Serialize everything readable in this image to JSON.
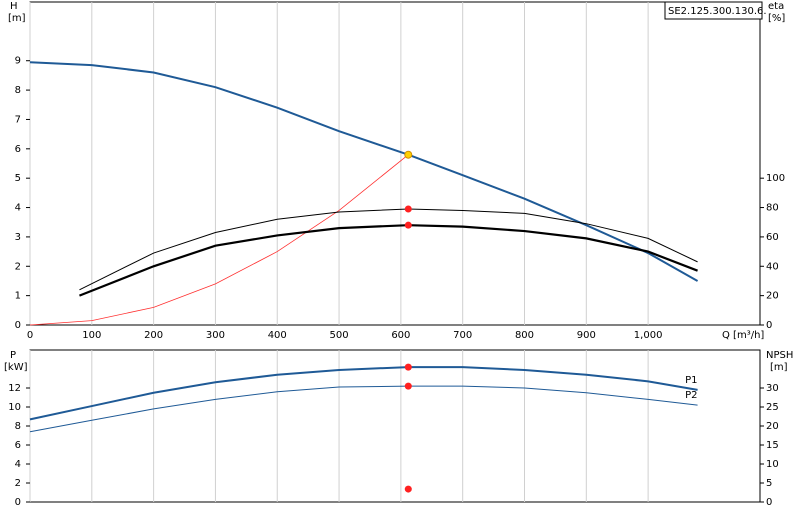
{
  "chart_data": [
    {
      "type": "line",
      "model": "SE2.125.300.130.6.",
      "ylabel": "H",
      "yunit": "[m]",
      "y2label": "eta",
      "y2unit": "[%]",
      "xlabel": "Q [m³/h]",
      "xlim": [
        0,
        1181
      ],
      "xticks": [
        0,
        100,
        200,
        300,
        400,
        500,
        600,
        700,
        800,
        900,
        {
          "value": 1000,
          "label": "1,000"
        }
      ],
      "ylim": [
        0,
        11
      ],
      "yticks": [
        0,
        1,
        2,
        3,
        4,
        5,
        6,
        7,
        8,
        9
      ],
      "y2lim": [
        0,
        220
      ],
      "y2ticks": [
        0,
        20,
        40,
        60,
        80,
        100
      ],
      "grid": true,
      "series": [
        {
          "color": "#1f5a96",
          "width": 2,
          "axis": "y",
          "x": [
            0,
            100,
            200,
            300,
            400,
            500,
            612,
            700,
            800,
            900,
            1000,
            1080
          ],
          "values": [
            8.95,
            8.85,
            8.6,
            8.1,
            7.4,
            6.6,
            5.8,
            5.1,
            4.3,
            3.4,
            2.45,
            1.5
          ]
        },
        {
          "color": "#ff3030",
          "width": 0.8,
          "axis": "y",
          "x": [
            0,
            100,
            200,
            300,
            400,
            500,
            612
          ],
          "values": [
            0,
            0.15,
            0.6,
            1.4,
            2.5,
            3.9,
            5.8
          ]
        },
        {
          "color": "#000000",
          "width": 1,
          "axis": "y2",
          "x": [
            80,
            200,
            300,
            400,
            500,
            612,
            700,
            800,
            900,
            1000,
            1080
          ],
          "values": [
            24,
            49,
            63,
            72,
            77,
            79,
            78,
            76,
            69,
            59,
            43
          ]
        },
        {
          "color": "#000000",
          "width": 2.2,
          "axis": "y2",
          "x": [
            80,
            200,
            300,
            400,
            500,
            612,
            700,
            800,
            900,
            1000,
            1080
          ],
          "values": [
            20,
            40,
            54,
            61,
            66,
            68,
            67,
            64,
            59,
            50,
            37
          ]
        }
      ],
      "points": [
        {
          "x": 612,
          "y": 5.8,
          "axis": "y",
          "color": "#ffd000"
        },
        {
          "x": 612,
          "y": 79,
          "axis": "y2",
          "color": "#ff2020"
        },
        {
          "x": 612,
          "y": 68,
          "axis": "y2",
          "color": "#ff2020"
        }
      ]
    },
    {
      "type": "line",
      "ylabel": "P",
      "yunit": "[kW]",
      "y2label": "NPSH",
      "y2unit": "[m]",
      "xlim": [
        0,
        1181
      ],
      "ylim": [
        0,
        16
      ],
      "yticks": [
        0,
        2,
        4,
        6,
        8,
        10,
        12
      ],
      "y2lim": [
        0,
        40
      ],
      "y2ticks": [
        0,
        5,
        10,
        15,
        20,
        25,
        30
      ],
      "grid": true,
      "series": [
        {
          "name": "P1",
          "color": "#1f5a96",
          "width": 2,
          "axis": "y",
          "x": [
            0,
            100,
            200,
            300,
            400,
            500,
            612,
            700,
            800,
            900,
            1000,
            1080
          ],
          "values": [
            8.7,
            10.1,
            11.5,
            12.6,
            13.4,
            13.9,
            14.2,
            14.2,
            13.9,
            13.4,
            12.7,
            11.8
          ]
        },
        {
          "name": "P2",
          "color": "#1f5a96",
          "width": 1,
          "axis": "y",
          "x": [
            0,
            100,
            200,
            300,
            400,
            500,
            612,
            700,
            800,
            900,
            1000,
            1080
          ],
          "values": [
            7.4,
            8.6,
            9.8,
            10.8,
            11.6,
            12.1,
            12.2,
            12.2,
            12.0,
            11.5,
            10.8,
            10.2
          ]
        }
      ],
      "points": [
        {
          "x": 612,
          "y": 14.2,
          "axis": "y",
          "color": "#ff2020"
        },
        {
          "x": 612,
          "y": 12.2,
          "axis": "y",
          "color": "#ff2020"
        },
        {
          "x": 612,
          "y": 3.4,
          "axis": "y2",
          "color": "#ff2020"
        }
      ]
    }
  ]
}
